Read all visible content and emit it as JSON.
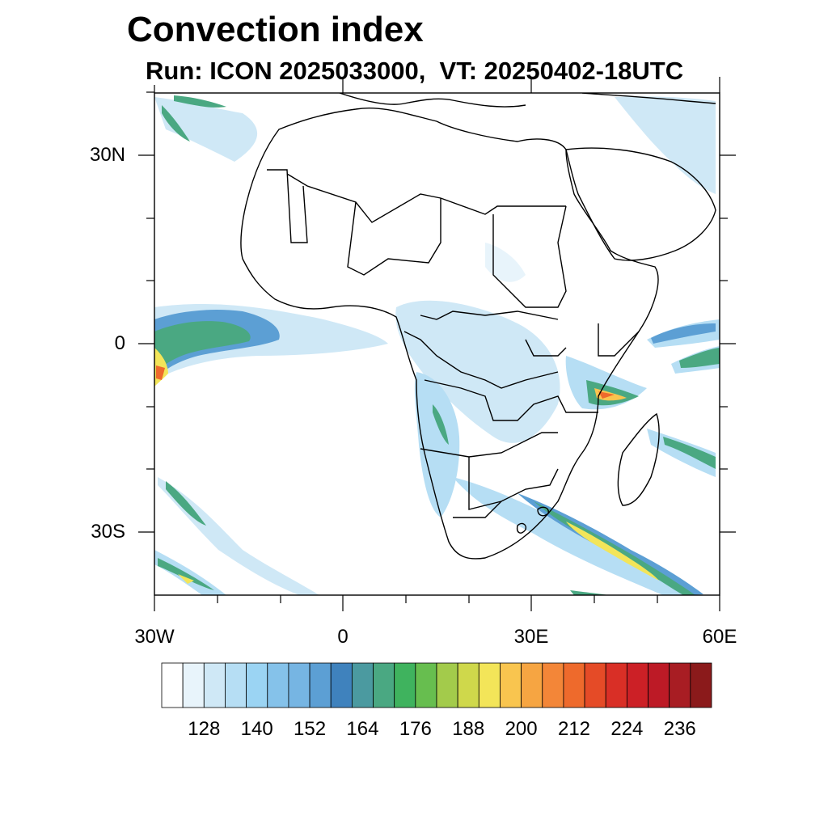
{
  "title": "Convection index",
  "subtitle": "Run: ICON 2025033000,  VT: 20250402-18UTC",
  "map": {
    "lon_range": [
      -30,
      60
    ],
    "lat_range": [
      -40,
      40
    ],
    "lat_labels": [
      "30N",
      "0",
      "30S"
    ],
    "lon_labels": [
      "30W",
      "0",
      "30E",
      "60E"
    ]
  },
  "colorbar": {
    "colors": [
      "#ffffff",
      "#e8f4fb",
      "#cfe8f6",
      "#b6def4",
      "#9bd4f3",
      "#85c2ea",
      "#76b5e3",
      "#5c9fd4",
      "#3f82bd",
      "#4b9aa0",
      "#4aa882",
      "#3fb35e",
      "#67be4f",
      "#a3cb4b",
      "#cfd84b",
      "#f3e559",
      "#f9c54f",
      "#f6a542",
      "#f38638",
      "#ee6a2c",
      "#e54b27",
      "#d92f26",
      "#cc2026",
      "#bd1a26",
      "#a81d23",
      "#8b1a1b"
    ],
    "tick_labels": [
      "128",
      "140",
      "152",
      "164",
      "176",
      "188",
      "200",
      "212",
      "224",
      "236"
    ]
  }
}
